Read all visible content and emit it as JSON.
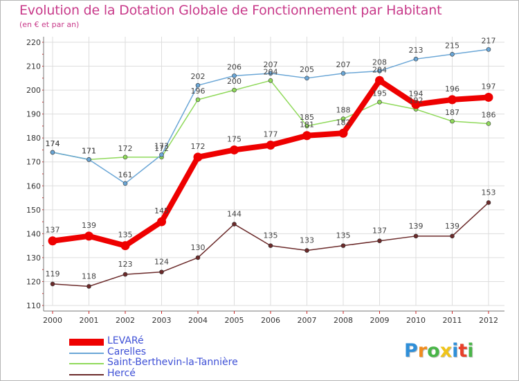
{
  "title": "Evolution de la Dotation Globale de Fonctionnement par Habitant",
  "subtitle": "(en € et par an)",
  "logo_text": "Proxiti",
  "colors": {
    "title": "#c83a8a",
    "legend_text": "#3d4fd6",
    "grid": "#dddddd",
    "axis": "#777777"
  },
  "chart_data": {
    "type": "line",
    "x": [
      "2000",
      "2001",
      "2002",
      "2003",
      "2004",
      "2005",
      "2006",
      "2007",
      "2008",
      "2009",
      "2010",
      "2011",
      "2012"
    ],
    "ylim": [
      110,
      220
    ],
    "yticks": [
      110,
      120,
      130,
      140,
      150,
      160,
      170,
      180,
      190,
      200,
      210,
      220
    ],
    "grid": true,
    "legend_placement": "bottom-left",
    "series": [
      {
        "name": "LEVARé",
        "color": "#ee0000",
        "values": [
          137,
          139,
          135,
          145,
          172,
          175,
          177,
          181,
          182,
          204,
          194,
          196,
          197
        ],
        "labels": [
          "137",
          "139",
          "135",
          "145",
          "172",
          "175",
          "177",
          "181",
          "182",
          "204",
          "194",
          "196",
          "197"
        ]
      },
      {
        "name": "Carelles",
        "color": "#6aa6d6",
        "values": [
          174,
          171,
          161,
          173,
          202,
          206,
          207,
          205,
          207,
          208,
          213,
          215,
          217
        ],
        "labels": [
          "174",
          "171",
          "161",
          "173",
          "202",
          "206",
          "207",
          "205",
          "207",
          "208",
          "213",
          "215",
          "217"
        ]
      },
      {
        "name": "Saint-Berthevin-la-Tannière",
        "color": "#8fd95a",
        "values": [
          174,
          171,
          172,
          172,
          196,
          200,
          204,
          185,
          188,
          195,
          192,
          187,
          186
        ],
        "labels": [
          "174",
          "171",
          "172",
          "172",
          "196",
          "200",
          "204",
          "185",
          "188",
          "195",
          "192",
          "187",
          "186"
        ]
      },
      {
        "name": "Hercé",
        "color": "#6b2a2a",
        "values": [
          119,
          118,
          123,
          124,
          130,
          144,
          135,
          133,
          135,
          137,
          139,
          139,
          153
        ],
        "labels": [
          "119",
          "118",
          "123",
          "124",
          "130",
          "144",
          "135",
          "133",
          "135",
          "137",
          "139",
          "139",
          "153"
        ]
      }
    ]
  }
}
